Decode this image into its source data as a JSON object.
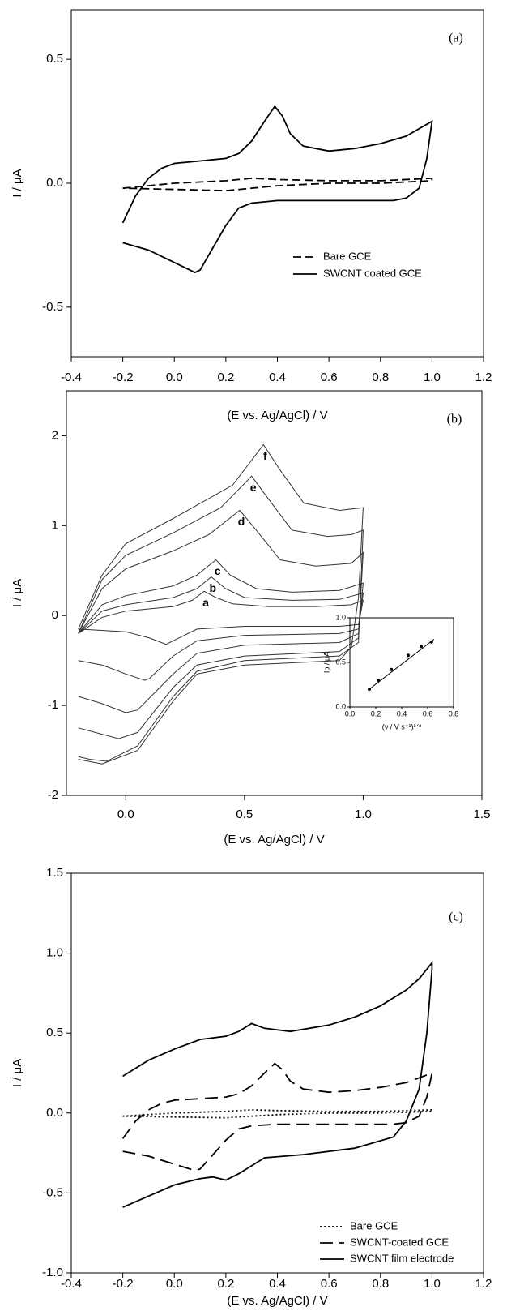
{
  "chart_data": [
    {
      "type": "line",
      "label": "(a)",
      "xlabel": "(E vs. Ag/AgCl) / V",
      "ylabel": "I / μA",
      "xlim": [
        -0.4,
        1.2
      ],
      "xticks": [
        -0.4,
        -0.2,
        {
          "value": 0,
          "label": "0.0"
        },
        0.2,
        0.4,
        0.6,
        0.8,
        {
          "value": 1,
          "label": "1.0"
        },
        1.2
      ],
      "ylim": [
        -0.7,
        0.7
      ],
      "yticks": [
        -0.5,
        {
          "value": 0,
          "label": "0.0"
        },
        0.5
      ],
      "legend": "lower right",
      "series": [
        {
          "name": "Bare GCE",
          "color": "#000000",
          "dash": "dashed",
          "x": [
            -0.2,
            0.0,
            0.2,
            0.3,
            0.4,
            0.6,
            0.8,
            1.0,
            1.0,
            0.8,
            0.6,
            0.4,
            0.3,
            0.2,
            0.0,
            -0.2
          ],
          "values": [
            -0.02,
            0.0,
            0.01,
            0.02,
            0.015,
            0.01,
            0.01,
            0.02,
            0.01,
            0.0,
            0.0,
            -0.01,
            -0.02,
            -0.03,
            -0.025,
            -0.02
          ]
        },
        {
          "name": "SWCNT coated GCE",
          "color": "#000000",
          "dash": "solid",
          "x": [
            -0.2,
            -0.15,
            -0.1,
            -0.05,
            0.0,
            0.1,
            0.2,
            0.25,
            0.3,
            0.35,
            0.39,
            0.42,
            0.45,
            0.5,
            0.6,
            0.7,
            0.8,
            0.9,
            1.0,
            0.98,
            0.95,
            0.9,
            0.85,
            0.6,
            0.4,
            0.3,
            0.25,
            0.2,
            0.15,
            0.1,
            0.08,
            0.0,
            -0.1,
            -0.2
          ],
          "values": [
            -0.16,
            -0.05,
            0.02,
            0.06,
            0.08,
            0.09,
            0.1,
            0.12,
            0.17,
            0.25,
            0.31,
            0.27,
            0.2,
            0.15,
            0.13,
            0.14,
            0.16,
            0.19,
            0.25,
            0.1,
            -0.02,
            -0.06,
            -0.07,
            -0.07,
            -0.07,
            -0.08,
            -0.1,
            -0.17,
            -0.26,
            -0.35,
            -0.36,
            -0.32,
            -0.27,
            -0.24
          ]
        }
      ]
    },
    {
      "type": "line",
      "label": "(b)",
      "xlabel": "(E vs. Ag/AgCl) / V",
      "ylabel": "I / μA",
      "xlim": [
        -0.25,
        1.5
      ],
      "xticks": [
        {
          "value": 0,
          "label": "0.0"
        },
        0.5,
        {
          "value": 1,
          "label": "1.0"
        },
        1.5
      ],
      "ylim": [
        -2,
        2.5
      ],
      "yticks": [
        -2,
        -1,
        0,
        1,
        2
      ],
      "series": [
        {
          "name": "a",
          "color": "#333333",
          "dash": "solid",
          "x": [
            -0.2,
            -0.1,
            0.0,
            0.2,
            0.28,
            0.33,
            0.38,
            0.45,
            0.6,
            0.8,
            0.95,
            1.0,
            0.98,
            0.9,
            0.5,
            0.3,
            0.2,
            0.17,
            0.1,
            0.0,
            -0.2
          ],
          "values": [
            -0.2,
            -0.02,
            0.05,
            0.1,
            0.17,
            0.27,
            0.2,
            0.13,
            0.1,
            0.1,
            0.12,
            0.17,
            -0.1,
            -0.12,
            -0.12,
            -0.15,
            -0.28,
            -0.32,
            -0.25,
            -0.18,
            -0.15
          ]
        },
        {
          "name": "b",
          "color": "#333333",
          "dash": "solid",
          "x": [
            -0.2,
            -0.1,
            0.0,
            0.2,
            0.3,
            0.36,
            0.42,
            0.5,
            0.7,
            0.9,
            1.0,
            0.98,
            0.9,
            0.5,
            0.3,
            0.2,
            0.1,
            0.08,
            0.0,
            -0.1,
            -0.2
          ],
          "values": [
            -0.2,
            0.05,
            0.12,
            0.2,
            0.3,
            0.43,
            0.3,
            0.2,
            0.17,
            0.18,
            0.25,
            -0.15,
            -0.2,
            -0.22,
            -0.28,
            -0.45,
            -0.7,
            -0.72,
            -0.65,
            -0.55,
            -0.5
          ]
        },
        {
          "name": "c",
          "color": "#333333",
          "dash": "solid",
          "x": [
            -0.2,
            -0.1,
            0.0,
            0.2,
            0.3,
            0.38,
            0.44,
            0.55,
            0.7,
            0.9,
            1.0,
            0.98,
            0.9,
            0.5,
            0.3,
            0.2,
            0.05,
            0.0,
            -0.1,
            -0.2
          ],
          "values": [
            -0.2,
            0.12,
            0.22,
            0.33,
            0.45,
            0.62,
            0.45,
            0.3,
            0.26,
            0.28,
            0.36,
            -0.2,
            -0.3,
            -0.33,
            -0.42,
            -0.65,
            -1.05,
            -1.08,
            -0.98,
            -0.9
          ]
        },
        {
          "name": "d",
          "color": "#333333",
          "dash": "solid",
          "x": [
            -0.2,
            -0.1,
            0.0,
            0.2,
            0.35,
            0.48,
            0.55,
            0.65,
            0.8,
            0.95,
            1.0,
            0.98,
            0.9,
            0.5,
            0.3,
            0.2,
            0.05,
            -0.03,
            -0.1,
            -0.2
          ],
          "values": [
            -0.2,
            0.3,
            0.52,
            0.72,
            0.9,
            1.17,
            0.95,
            0.62,
            0.55,
            0.58,
            0.7,
            -0.25,
            -0.4,
            -0.45,
            -0.55,
            -0.8,
            -1.3,
            -1.37,
            -1.32,
            -1.25
          ]
        },
        {
          "name": "e",
          "color": "#333333",
          "dash": "solid",
          "x": [
            -0.2,
            -0.1,
            0.0,
            0.2,
            0.4,
            0.53,
            0.6,
            0.7,
            0.85,
            0.95,
            1.0,
            0.98,
            0.9,
            0.5,
            0.3,
            0.2,
            0.05,
            -0.08,
            -0.15,
            -0.2
          ],
          "values": [
            -0.2,
            0.4,
            0.67,
            0.92,
            1.2,
            1.55,
            1.3,
            0.95,
            0.88,
            0.9,
            0.95,
            -0.3,
            -0.45,
            -0.5,
            -0.62,
            -0.9,
            -1.45,
            -1.62,
            -1.6,
            -1.57
          ]
        },
        {
          "name": "f",
          "color": "#333333",
          "dash": "solid",
          "x": [
            -0.2,
            -0.1,
            0.0,
            0.2,
            0.45,
            0.58,
            0.65,
            0.75,
            0.9,
            1.0,
            0.98,
            0.95,
            0.9,
            0.5,
            0.3,
            0.2,
            0.05,
            -0.1,
            -0.2
          ],
          "values": [
            -0.15,
            0.45,
            0.8,
            1.08,
            1.45,
            1.9,
            1.62,
            1.25,
            1.17,
            1.2,
            0.2,
            -0.35,
            -0.5,
            -0.55,
            -0.65,
            -0.95,
            -1.5,
            -1.65,
            -1.6
          ]
        }
      ]
    },
    {
      "type": "scatter",
      "xlabel": "(ν / V s⁻¹)¹ᐟ²",
      "ylabel": "Ip / μA",
      "xlim": [
        0,
        0.8
      ],
      "xticks": [
        {
          "value": 0,
          "label": "0.0"
        },
        0.2,
        0.4,
        0.6,
        0.8
      ],
      "ylim": [
        0,
        1
      ],
      "yticks": [
        {
          "value": 0,
          "label": "0.0"
        },
        0.5,
        {
          "value": 1,
          "label": "1.0"
        }
      ],
      "series": [
        {
          "color": "#000000",
          "x": [
            0.15,
            0.22,
            0.32,
            0.45,
            0.55,
            0.63
          ],
          "values": [
            0.2,
            0.3,
            0.42,
            0.58,
            0.68,
            0.73
          ]
        }
      ],
      "trendline": {
        "x": [
          0.15,
          0.65
        ],
        "values": [
          0.2,
          0.76
        ]
      }
    },
    {
      "type": "line",
      "label": "(c)",
      "xlabel": "(E vs. Ag/AgCl) / V",
      "ylabel": "I / μA",
      "xlim": [
        -0.4,
        1.2
      ],
      "xticks": [
        -0.4,
        -0.2,
        {
          "value": 0,
          "label": "0.0"
        },
        0.2,
        0.4,
        0.6,
        0.8,
        {
          "value": 1,
          "label": "1.0"
        },
        1.2
      ],
      "ylim": [
        -1,
        1.5
      ],
      "yticks": [
        {
          "value": -1,
          "label": "-1.0"
        },
        -0.5,
        {
          "value": 0,
          "label": "0.0"
        },
        0.5,
        {
          "value": 1,
          "label": "1.0"
        },
        1.5
      ],
      "legend": "lower right",
      "series": [
        {
          "name": "Bare GCE",
          "color": "#000000",
          "dash": "dotted",
          "x": [
            -0.2,
            0.0,
            0.2,
            0.3,
            0.4,
            0.6,
            0.8,
            1.0,
            1.0,
            0.8,
            0.6,
            0.4,
            0.3,
            0.2,
            0.0,
            -0.2
          ],
          "values": [
            -0.02,
            0.0,
            0.01,
            0.02,
            0.015,
            0.01,
            0.01,
            0.02,
            0.01,
            0.0,
            0.0,
            -0.01,
            -0.02,
            -0.03,
            -0.025,
            -0.02
          ]
        },
        {
          "name": "SWCNT-coated GCE",
          "color": "#000000",
          "dash": "long-dashed",
          "x": [
            -0.2,
            -0.15,
            -0.1,
            -0.05,
            0.0,
            0.1,
            0.2,
            0.25,
            0.3,
            0.35,
            0.39,
            0.42,
            0.45,
            0.5,
            0.6,
            0.7,
            0.8,
            0.9,
            1.0,
            0.98,
            0.95,
            0.9,
            0.85,
            0.6,
            0.4,
            0.3,
            0.25,
            0.2,
            0.15,
            0.1,
            0.08,
            0.0,
            -0.1,
            -0.2
          ],
          "values": [
            -0.16,
            -0.05,
            0.02,
            0.06,
            0.08,
            0.09,
            0.1,
            0.12,
            0.17,
            0.25,
            0.31,
            0.27,
            0.2,
            0.15,
            0.13,
            0.14,
            0.16,
            0.19,
            0.25,
            0.1,
            -0.02,
            -0.06,
            -0.07,
            -0.07,
            -0.07,
            -0.08,
            -0.1,
            -0.17,
            -0.26,
            -0.35,
            -0.36,
            -0.32,
            -0.27,
            -0.24
          ]
        },
        {
          "name": "SWCNT film electrode",
          "color": "#000000",
          "dash": "solid",
          "x": [
            -0.2,
            -0.1,
            0.0,
            0.1,
            0.2,
            0.25,
            0.3,
            0.35,
            0.45,
            0.6,
            0.7,
            0.8,
            0.9,
            0.95,
            1.0,
            1.0,
            0.98,
            0.95,
            0.9,
            0.85,
            0.7,
            0.5,
            0.35,
            0.3,
            0.25,
            0.2,
            0.15,
            0.1,
            0.0,
            -0.1,
            -0.2
          ],
          "values": [
            0.23,
            0.33,
            0.4,
            0.46,
            0.48,
            0.51,
            0.56,
            0.53,
            0.51,
            0.55,
            0.6,
            0.67,
            0.77,
            0.84,
            0.94,
            0.9,
            0.5,
            0.15,
            -0.05,
            -0.15,
            -0.22,
            -0.26,
            -0.28,
            -0.33,
            -0.38,
            -0.42,
            -0.4,
            -0.41,
            -0.45,
            -0.52,
            -0.59
          ]
        }
      ]
    }
  ]
}
